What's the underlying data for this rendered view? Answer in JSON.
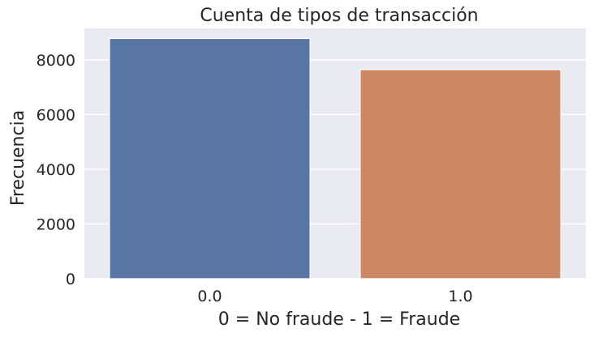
{
  "chart_data": {
    "type": "bar",
    "title": "Cuenta de tipos de transacción",
    "xlabel": "0 = No fraude - 1 = Fraude",
    "ylabel": "Frecuencia",
    "categories": [
      "0.0",
      "1.0"
    ],
    "values": [
      8780,
      7640
    ],
    "ylim": [
      0,
      9150
    ],
    "yticks": [
      0,
      2000,
      4000,
      6000,
      8000
    ],
    "grid": true,
    "colors": [
      "#5975a4",
      "#cc8963"
    ],
    "background": "#eaeaf2",
    "grid_color": "#ffffff"
  }
}
